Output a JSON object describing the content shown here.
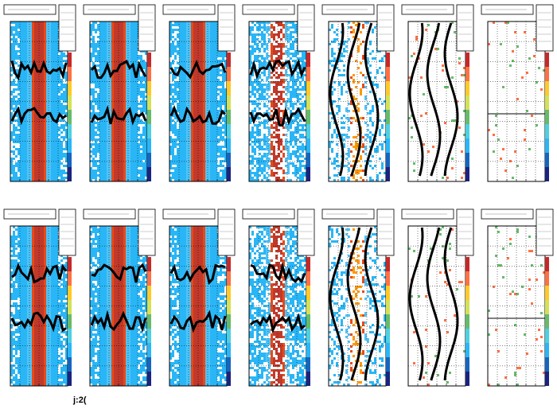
{
  "footer": {
    "text": "j:2("
  }
}
